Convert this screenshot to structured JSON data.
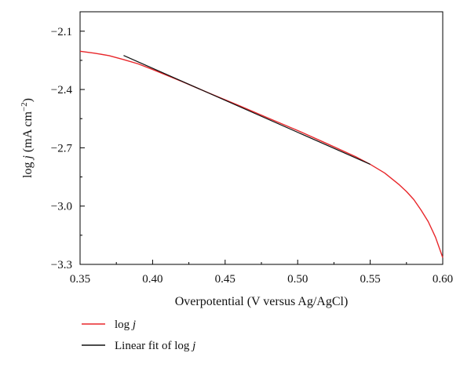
{
  "chart_data": {
    "type": "line",
    "title": "",
    "xlabel": "Overpotential (V versus Ag/AgCl)",
    "ylabel": "log j (mA cm−2)",
    "ylabel_parts": {
      "pre": "log ",
      "var": "j",
      "mid": " (mA cm",
      "sup": "−2",
      "post": ")"
    },
    "xlim": [
      0.35,
      0.6
    ],
    "ylim": [
      -3.3,
      -2.0
    ],
    "x_ticks": [
      0.35,
      0.4,
      0.45,
      0.5,
      0.55,
      0.6
    ],
    "x_tick_labels": [
      "0.35",
      "0.40",
      "0.45",
      "0.50",
      "0.55",
      "0.60"
    ],
    "y_ticks": [
      -2.1,
      -2.4,
      -2.7,
      -3.0,
      -3.3
    ],
    "y_tick_labels": [
      "−2.1",
      "−2.4",
      "−2.7",
      "−3.0",
      "−3.3"
    ],
    "grid": false,
    "legend_position": "bottom-left",
    "series": [
      {
        "name": "log j",
        "name_parts": {
          "pre": "log ",
          "var": "j",
          "post": ""
        },
        "color": "#e8262a",
        "x": [
          0.35,
          0.36,
          0.37,
          0.38,
          0.39,
          0.4,
          0.42,
          0.44,
          0.46,
          0.48,
          0.5,
          0.52,
          0.54,
          0.55,
          0.56,
          0.57,
          0.575,
          0.58,
          0.585,
          0.59,
          0.595,
          0.6
        ],
        "y": [
          -2.203,
          -2.213,
          -2.226,
          -2.246,
          -2.268,
          -2.297,
          -2.358,
          -2.422,
          -2.484,
          -2.548,
          -2.611,
          -2.678,
          -2.746,
          -2.785,
          -2.83,
          -2.89,
          -2.925,
          -2.966,
          -3.02,
          -3.08,
          -3.16,
          -3.265
        ]
      },
      {
        "name": "Linear fit of log j",
        "name_parts": {
          "pre": "Linear fit of log ",
          "var": "j",
          "post": ""
        },
        "color": "#111111",
        "x": [
          0.38,
          0.55
        ],
        "y": [
          -2.225,
          -2.785
        ]
      }
    ]
  }
}
